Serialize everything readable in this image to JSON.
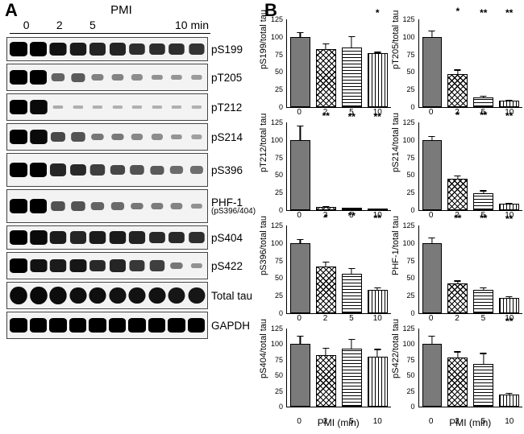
{
  "panelA": {
    "label": "A",
    "header": "PMI",
    "time_points": [
      "0",
      "2",
      "5",
      "10 min"
    ],
    "blots": [
      {
        "name": "pS199",
        "intensities": [
          1.0,
          1.0,
          0.9,
          0.85,
          0.8,
          0.8,
          0.75,
          0.75,
          0.75,
          0.72
        ],
        "height": "low"
      },
      {
        "name": "pT205",
        "intensities": [
          1.0,
          1.0,
          0.45,
          0.5,
          0.3,
          0.28,
          0.22,
          0.2,
          0.18,
          0.15
        ],
        "height": "normal"
      },
      {
        "name": "pT212",
        "intensities": [
          1.0,
          0.95,
          0.05,
          0.04,
          0.02,
          0.02,
          0.02,
          0.02,
          0.02,
          0.02
        ],
        "height": "normal"
      },
      {
        "name": "pS214",
        "intensities": [
          1.0,
          0.95,
          0.6,
          0.55,
          0.35,
          0.33,
          0.25,
          0.22,
          0.18,
          0.12
        ],
        "height": "normal"
      },
      {
        "name": "pS396",
        "intensities": [
          1.0,
          1.0,
          0.8,
          0.78,
          0.65,
          0.62,
          0.55,
          0.5,
          0.42,
          0.4
        ],
        "height": "high"
      },
      {
        "name": "PHF-1",
        "sub": "(pS396/404)",
        "intensities": [
          1.0,
          1.0,
          0.55,
          0.55,
          0.45,
          0.42,
          0.35,
          0.32,
          0.28,
          0.2
        ],
        "height": "high"
      },
      {
        "name": "pS404",
        "intensities": [
          1.0,
          0.95,
          0.85,
          0.8,
          0.85,
          0.85,
          0.82,
          0.78,
          0.78,
          0.75
        ],
        "height": "low"
      },
      {
        "name": "pS422",
        "intensities": [
          1.0,
          0.9,
          0.85,
          0.88,
          0.78,
          0.8,
          0.7,
          0.65,
          0.35,
          0.2
        ],
        "height": "normal"
      },
      {
        "name": "Total tau",
        "intensities": [
          0.95,
          0.95,
          0.93,
          0.92,
          0.92,
          0.9,
          0.9,
          0.9,
          0.88,
          0.88
        ],
        "height": "normal",
        "shape": "round"
      },
      {
        "name": "GAPDH",
        "intensities": [
          1.0,
          1.0,
          1.0,
          1.0,
          1.0,
          1.0,
          1.0,
          1.0,
          1.0,
          1.0
        ],
        "height": "normal"
      }
    ],
    "band_color": "#000000",
    "bg_color": "#f3f3f3"
  },
  "panelB": {
    "label": "B",
    "ymax": 125,
    "ytick_step": 25,
    "x_categories": [
      "0",
      "2",
      "5",
      "10"
    ],
    "x_label": "PMI (min)",
    "bar_fills": [
      "fill-solid",
      "fill-cross",
      "fill-hstripe",
      "fill-vstripe"
    ],
    "colors": {
      "solid": "#7a7a7a",
      "axis": "#000000",
      "bg": "#ffffff"
    },
    "charts": [
      {
        "ylabel": "pS199/total tau",
        "values": [
          100,
          83,
          85,
          77
        ],
        "errors": [
          8,
          9,
          18,
          3
        ],
        "sig": [
          "",
          "",
          "",
          "*"
        ]
      },
      {
        "ylabel": "pT205/total tau",
        "values": [
          100,
          47,
          14,
          9
        ],
        "errors": [
          10,
          8,
          4,
          3
        ],
        "sig": [
          "",
          "*",
          "**",
          "**"
        ]
      },
      {
        "ylabel": "pT212/total tau",
        "values": [
          100,
          5,
          3,
          2
        ],
        "errors": [
          22,
          3,
          2,
          2
        ],
        "sig": [
          "",
          "**",
          "**",
          "**"
        ]
      },
      {
        "ylabel": "pS214/total tau",
        "values": [
          100,
          45,
          24,
          9
        ],
        "errors": [
          7,
          6,
          6,
          4
        ],
        "sig": [
          "",
          "*",
          "**",
          "**"
        ]
      },
      {
        "ylabel": "pS396/total tau",
        "values": [
          100,
          67,
          56,
          33
        ],
        "errors": [
          7,
          8,
          10,
          5
        ],
        "sig": [
          "",
          "*",
          "**",
          "**"
        ]
      },
      {
        "ylabel": "PHF-1/total tau",
        "values": [
          100,
          42,
          33,
          22
        ],
        "errors": [
          9,
          6,
          5,
          4
        ],
        "sig": [
          "",
          "**",
          "**",
          "**"
        ]
      },
      {
        "ylabel": "pS404/total tau",
        "values": [
          100,
          83,
          93,
          80
        ],
        "errors": [
          15,
          13,
          17,
          14
        ],
        "sig": [
          "",
          "",
          "",
          ""
        ]
      },
      {
        "ylabel": "pS422/total tau",
        "values": [
          100,
          78,
          68,
          19
        ],
        "errors": [
          15,
          12,
          20,
          5
        ],
        "sig": [
          "",
          "",
          "",
          "**"
        ]
      }
    ],
    "label_fontsize": 11,
    "tick_fontsize": 9,
    "show_bottom_xlabel_only_last_row": true
  }
}
